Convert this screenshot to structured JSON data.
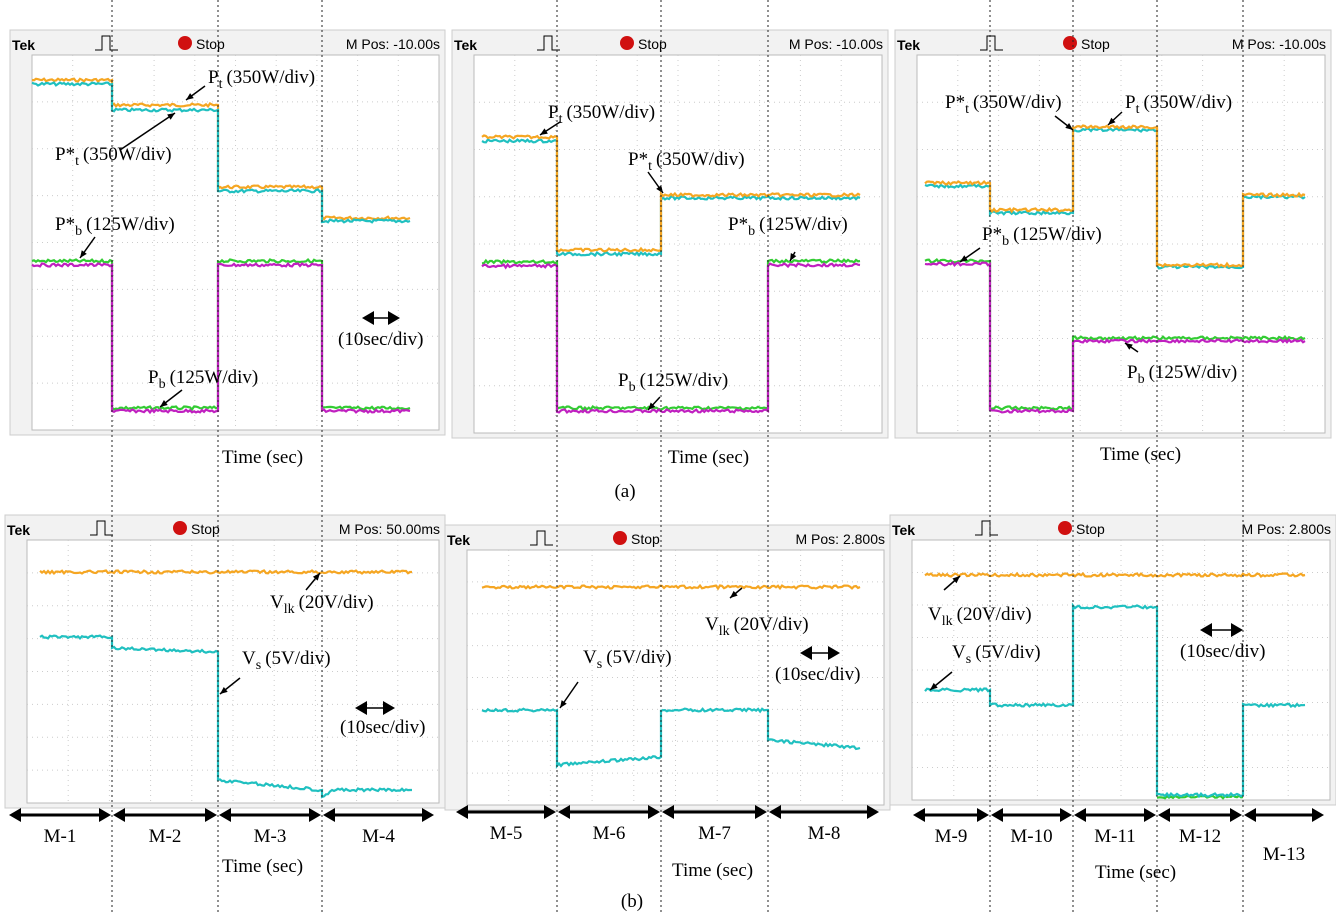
{
  "panels": [
    {
      "header": {
        "brand": "Tek",
        "status": "Stop",
        "position": "M Pos: -10.00s"
      },
      "annotations": [
        {
          "symbol": "P",
          "sub": "t",
          "scale": "(350W/div)"
        },
        {
          "symbol": "P*",
          "sub": "t",
          "scale": "(350W/div)"
        },
        {
          "symbol": "P*",
          "sub": "b",
          "scale": "(125W/div)"
        },
        {
          "symbol": "P",
          "sub": "b",
          "scale": "(125W/div)"
        }
      ],
      "time_scale": "(10sec/div)",
      "x_label": "Time (sec)"
    },
    {
      "header": {
        "brand": "Tek",
        "status": "Stop",
        "position": "M Pos: -10.00s"
      },
      "annotations": [
        {
          "symbol": "P",
          "sub": "t",
          "scale": "(350W/div)"
        },
        {
          "symbol": "P*",
          "sub": "t",
          "scale": "(350W/div)"
        },
        {
          "symbol": "P*",
          "sub": "b",
          "scale": "(125W/div)"
        },
        {
          "symbol": "P",
          "sub": "b",
          "scale": "(125W/div)"
        }
      ],
      "x_label": "Time (sec)"
    },
    {
      "header": {
        "brand": "Tek",
        "status": "Stop",
        "position": "M Pos: -10.00s"
      },
      "annotations": [
        {
          "symbol": "P*",
          "sub": "t",
          "scale": "(350W/div)"
        },
        {
          "symbol": "P",
          "sub": "t",
          "scale": "(350W/div)"
        },
        {
          "symbol": "P*",
          "sub": "b",
          "scale": "(125W/div)"
        },
        {
          "symbol": "P",
          "sub": "b",
          "scale": "(125W/div)"
        }
      ],
      "x_label": "Time (sec)"
    },
    {
      "header": {
        "brand": "Tek",
        "status": "Stop",
        "position": "M Pos: 50.00ms"
      },
      "annotations": [
        {
          "symbol": "V",
          "sub": "lk",
          "scale": "(20V/div)"
        },
        {
          "symbol": "V",
          "sub": "s",
          "scale": "(5V/div)"
        }
      ],
      "time_scale": "(10sec/div)",
      "x_label": "Time (sec)",
      "modes": [
        "M-1",
        "M-2",
        "M-3",
        "M-4"
      ]
    },
    {
      "header": {
        "brand": "Tek",
        "status": "Stop",
        "position": "M Pos: 2.800s"
      },
      "annotations": [
        {
          "symbol": "V",
          "sub": "lk",
          "scale": "(20V/div)"
        },
        {
          "symbol": "V",
          "sub": "s",
          "scale": "(5V/div)"
        }
      ],
      "time_scale": "(10sec/div)",
      "x_label": "Time (sec)",
      "modes": [
        "M-5",
        "M-6",
        "M-7",
        "M-8"
      ]
    },
    {
      "header": {
        "brand": "Tek",
        "status": "Stop",
        "position": "M Pos: 2.800s"
      },
      "annotations": [
        {
          "symbol": "V",
          "sub": "lk",
          "scale": "(20V/div)"
        },
        {
          "symbol": "V",
          "sub": "s",
          "scale": "(5V/div)"
        }
      ],
      "time_scale": "(10sec/div)",
      "x_label": "Time (sec)",
      "modes": [
        "M-9",
        "M-10",
        "M-11",
        "M-12",
        "M-13"
      ]
    }
  ],
  "captions": [
    "(a)",
    "(b)"
  ]
}
